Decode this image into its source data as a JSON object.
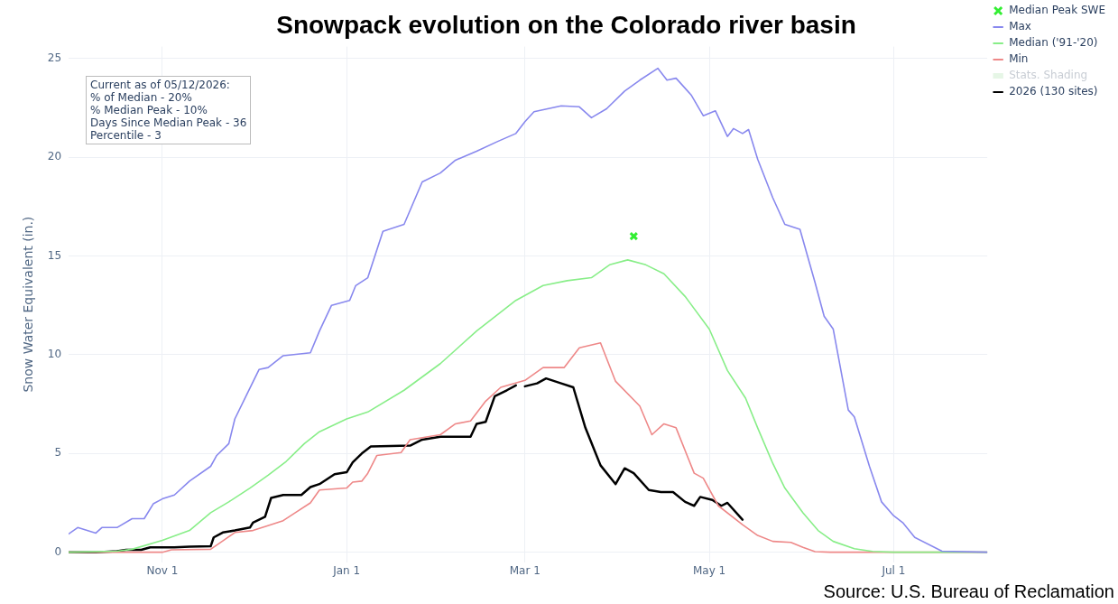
{
  "chart_data": {
    "type": "line",
    "title": "Snowpack evolution on the Colorado river basin",
    "ylabel": "Snow Water Equivalent (in.)",
    "annotations": [
      "Current as of 05/12/2026:\n% of Median - 20%\n% Median Peak - 10%\nDays Since Median Peak - 36\nPercentile - 3",
      "Source: U.S. Bureau of Reclamation"
    ],
    "xlim": [
      "2025-10-01",
      "2026-08-01"
    ],
    "xticks": [
      {
        "value": "2025-11-01",
        "label": "Nov 1"
      },
      {
        "value": "2026-01-01",
        "label": "Jan 1"
      },
      {
        "value": "2026-03-01",
        "label": "Mar 1"
      },
      {
        "value": "2026-05-01",
        "label": "May 1"
      },
      {
        "value": "2026-07-01",
        "label": "Jul 1"
      }
    ],
    "ylim": [
      -0.5,
      25.6
    ],
    "yticks": [
      0,
      5,
      10,
      15,
      20,
      25
    ],
    "grid": true,
    "legend": "top right",
    "marker": "none",
    "line_style": "solid",
    "series": [
      {
        "name": "Median Peak SWE",
        "type": "scatter",
        "marker": "cross",
        "color": "#33ee33",
        "x": [
          "2026-04-06"
        ],
        "values": [
          16.0
        ]
      },
      {
        "name": "Max",
        "color": "#8888ee",
        "x": [
          "2025-10-01",
          "2025-10-04",
          "2025-10-10",
          "2025-10-12",
          "2025-10-17",
          "2025-10-22",
          "2025-10-26",
          "2025-10-29",
          "2025-11-01",
          "2025-11-05",
          "2025-11-10",
          "2025-11-17",
          "2025-11-19",
          "2025-11-23",
          "2025-11-25",
          "2025-11-29",
          "2025-12-03",
          "2025-12-06",
          "2025-12-11",
          "2025-12-20",
          "2025-12-23",
          "2025-12-27",
          "2026-01-02",
          "2026-01-04",
          "2026-01-08",
          "2026-01-13",
          "2026-01-20",
          "2026-01-26",
          "2026-02-01",
          "2026-02-06",
          "2026-02-13",
          "2026-02-20",
          "2026-02-26",
          "2026-03-01",
          "2026-03-04",
          "2026-03-13",
          "2026-03-19",
          "2026-03-23",
          "2026-03-28",
          "2026-04-03",
          "2026-04-08",
          "2026-04-14",
          "2026-04-17",
          "2026-04-20",
          "2026-04-25",
          "2026-04-29",
          "2026-05-03",
          "2026-05-07",
          "2026-05-09",
          "2026-05-12",
          "2026-05-14",
          "2026-05-17",
          "2026-05-22",
          "2026-05-26",
          "2026-05-31",
          "2026-06-05",
          "2026-06-08",
          "2026-06-11",
          "2026-06-16",
          "2026-06-18",
          "2026-06-23",
          "2026-06-27",
          "2026-07-01",
          "2026-07-04",
          "2026-07-08",
          "2026-07-17",
          "2026-08-01"
        ],
        "values": [
          0.93,
          1.25,
          0.97,
          1.25,
          1.25,
          1.7,
          1.7,
          2.45,
          2.7,
          2.9,
          3.6,
          4.35,
          4.9,
          5.5,
          6.75,
          8.0,
          9.25,
          9.35,
          9.95,
          10.1,
          11.2,
          12.5,
          12.75,
          13.5,
          13.9,
          16.25,
          16.6,
          18.75,
          19.2,
          19.85,
          20.3,
          20.8,
          21.2,
          21.8,
          22.3,
          22.6,
          22.55,
          22.0,
          22.45,
          23.35,
          23.9,
          24.5,
          23.9,
          24.0,
          23.15,
          22.1,
          22.35,
          21.05,
          21.45,
          21.2,
          21.4,
          19.9,
          17.95,
          16.6,
          16.35,
          13.65,
          11.95,
          11.3,
          7.2,
          6.85,
          4.35,
          2.55,
          1.85,
          1.5,
          0.75,
          0.05,
          0
        ]
      },
      {
        "name": "Median ('91-'20)",
        "color": "#88ee88",
        "x": [
          "2025-10-01",
          "2025-10-17",
          "2025-10-22",
          "2025-11-01",
          "2025-11-10",
          "2025-11-17",
          "2025-11-23",
          "2025-11-30",
          "2025-12-06",
          "2025-12-12",
          "2025-12-18",
          "2025-12-23",
          "2026-01-01",
          "2026-01-08",
          "2026-01-20",
          "2026-02-01",
          "2026-02-13",
          "2026-02-26",
          "2026-03-07",
          "2026-03-15",
          "2026-03-23",
          "2026-03-29",
          "2026-04-04",
          "2026-04-10",
          "2026-04-16",
          "2026-04-23",
          "2026-05-01",
          "2026-05-07",
          "2026-05-13",
          "2026-05-17",
          "2026-05-22",
          "2026-05-26",
          "2026-06-01",
          "2026-06-06",
          "2026-06-11",
          "2026-06-18",
          "2026-06-24",
          "2026-07-01",
          "2026-08-01"
        ],
        "values": [
          0,
          0.05,
          0.15,
          0.6,
          1.1,
          2.0,
          2.55,
          3.25,
          3.9,
          4.6,
          5.5,
          6.1,
          6.75,
          7.1,
          8.2,
          9.55,
          11.2,
          12.75,
          13.5,
          13.75,
          13.9,
          14.55,
          14.8,
          14.55,
          14.1,
          12.95,
          11.3,
          9.2,
          7.8,
          6.3,
          4.5,
          3.25,
          2.0,
          1.1,
          0.55,
          0.18,
          0.04,
          0,
          0
        ]
      },
      {
        "name": "Min",
        "color": "#ee8888",
        "x": [
          "2025-10-01",
          "2025-11-01",
          "2025-11-04",
          "2025-11-17",
          "2025-11-21",
          "2025-11-25",
          "2025-12-01",
          "2025-12-05",
          "2025-12-11",
          "2025-12-15",
          "2025-12-20",
          "2025-12-23",
          "2026-01-01",
          "2026-01-03",
          "2026-01-06",
          "2026-01-08",
          "2026-01-11",
          "2026-01-19",
          "2026-01-22",
          "2026-02-01",
          "2026-02-06",
          "2026-02-11",
          "2026-02-16",
          "2026-02-21",
          "2026-03-01",
          "2026-03-07",
          "2026-03-14",
          "2026-03-19",
          "2026-03-26",
          "2026-03-31",
          "2026-04-08",
          "2026-04-12",
          "2026-04-16",
          "2026-04-20",
          "2026-04-26",
          "2026-04-29",
          "2026-05-04",
          "2026-05-12",
          "2026-05-17",
          "2026-05-22",
          "2026-05-28",
          "2026-06-01",
          "2026-06-05",
          "2026-06-10",
          "2026-08-01"
        ],
        "values": [
          0,
          0,
          0.12,
          0.15,
          0.57,
          1.0,
          1.1,
          1.3,
          1.6,
          2.0,
          2.5,
          3.15,
          3.25,
          3.55,
          3.6,
          4.0,
          4.9,
          5.05,
          5.7,
          5.95,
          6.5,
          6.65,
          7.65,
          8.35,
          8.7,
          9.35,
          9.35,
          10.35,
          10.6,
          8.65,
          7.4,
          5.95,
          6.5,
          6.3,
          4.0,
          3.75,
          2.35,
          1.4,
          0.85,
          0.55,
          0.5,
          0.25,
          0.03,
          0,
          0
        ]
      },
      {
        "name": "Stats. Shading",
        "type": "area",
        "color": "#e6f6e6"
      },
      {
        "name": "2026 (130 sites)",
        "color": "#000000",
        "x": [
          "2025-10-01",
          "2025-10-10",
          "2025-10-17",
          "2025-10-20",
          "2025-10-25",
          "2025-10-28",
          "2025-11-05",
          "2025-11-10",
          "2025-11-17",
          "2025-11-18",
          "2025-11-21",
          "2025-11-25",
          "2025-11-30",
          "2025-12-01",
          "2025-12-05",
          "2025-12-07",
          "2025-12-11",
          "2025-12-17",
          "2025-12-20",
          "2025-12-23",
          "2025-12-28",
          "2026-01-01",
          "2026-01-03",
          "2026-01-06",
          "2026-01-09",
          "2026-01-22",
          "2026-01-26",
          "2026-02-01",
          "2026-02-11",
          "2026-02-13",
          "2026-02-16",
          "2026-02-19",
          "2026-02-23",
          "2026-02-26",
          "2026-02-28",
          "2026-03-01",
          "2026-03-05",
          "2026-03-08",
          "2026-03-13",
          "2026-03-17",
          "2026-03-21",
          "2026-03-26",
          "2026-03-31",
          "2026-04-03",
          "2026-04-06",
          "2026-04-11",
          "2026-04-15",
          "2026-04-19",
          "2026-04-23",
          "2026-04-26",
          "2026-04-28",
          "2026-05-02",
          "2026-05-05",
          "2026-05-07",
          "2026-05-12"
        ],
        "values": [
          0,
          0,
          0.05,
          0.12,
          0.12,
          0.25,
          0.25,
          0.28,
          0.3,
          0.75,
          1.0,
          1.1,
          1.25,
          1.5,
          1.8,
          2.75,
          2.9,
          2.9,
          3.3,
          3.45,
          3.95,
          4.05,
          4.55,
          5.0,
          5.35,
          5.4,
          5.7,
          5.85,
          5.85,
          6.5,
          6.6,
          7.9,
          8.2,
          8.45,
          null,
          8.4,
          8.55,
          8.8,
          8.55,
          8.35,
          6.3,
          4.4,
          3.45,
          4.25,
          4.0,
          3.15,
          3.05,
          3.05,
          2.55,
          2.35,
          2.8,
          2.65,
          2.35,
          2.5,
          1.65
        ]
      }
    ]
  }
}
